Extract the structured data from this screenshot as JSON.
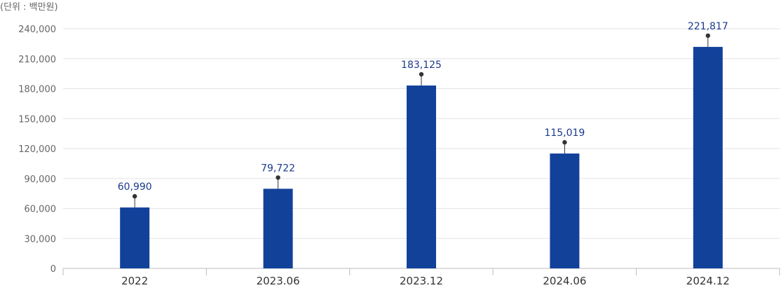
{
  "chart_data": {
    "type": "bar",
    "unit_note": "(단위 : 백만원)",
    "categories": [
      "2022",
      "2023.06",
      "2023.12",
      "2024.06",
      "2024.12"
    ],
    "values": [
      60990,
      79722,
      183125,
      115019,
      221817
    ],
    "value_labels": [
      "60,990",
      "79,722",
      "183,125",
      "115,019",
      "221,817"
    ],
    "ylim": [
      0,
      240000
    ],
    "yticks": [
      0,
      30000,
      60000,
      90000,
      120000,
      150000,
      180000,
      210000,
      240000
    ],
    "ytick_labels": [
      "0",
      "30,000",
      "60,000",
      "90,000",
      "120,000",
      "150,000",
      "180,000",
      "210,000",
      "240,000"
    ],
    "grid": true,
    "bar_color": "#12419a",
    "label_color": "#1b3a8c",
    "title": "",
    "xlabel": "",
    "ylabel": ""
  }
}
